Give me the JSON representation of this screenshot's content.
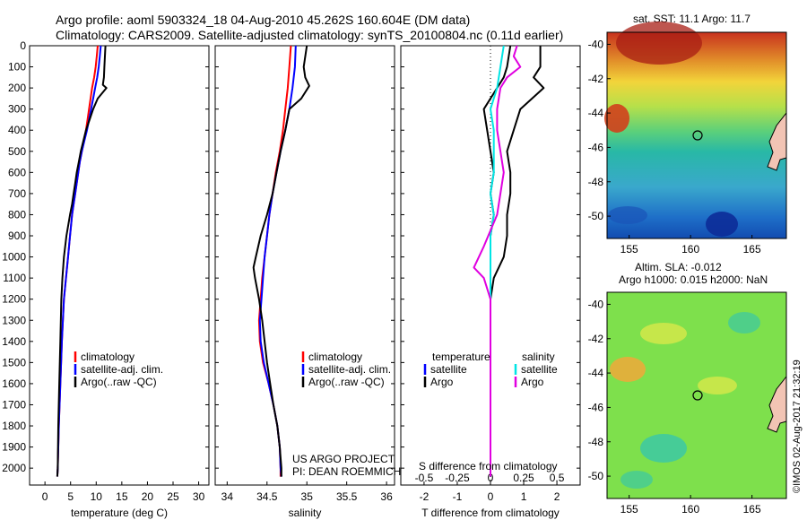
{
  "header": {
    "line1": "Argo profile: aoml 5903324_18 04-Aug-2010 45.262S 160.604E (DM data)",
    "line2": "Climatology: CARS2009. Satellite-adjusted climatology: synTS_20100804.nc (0.11d earlier)"
  },
  "depth_ticks": [
    "0",
    "100",
    "200",
    "300",
    "400",
    "500",
    "600",
    "700",
    "800",
    "900",
    "1000",
    "1100",
    "1200",
    "1300",
    "1400",
    "1500",
    "1600",
    "1700",
    "1800",
    "1900",
    "2000"
  ],
  "colors": {
    "climatology": "#ff0000",
    "satellite": "#0000ff",
    "argo": "#000000",
    "s_satellite": "#00e5e5",
    "s_argo": "#e000e0"
  },
  "legend_profile": {
    "climatology": "climatology",
    "satellite": "satellite-adj. clim.",
    "argo": "Argo(..raw -QC)"
  },
  "legend_diff": {
    "temperature": "temperature",
    "salinity": "salinity",
    "t_satellite": "satellite",
    "t_argo": "Argo",
    "s_satellite": "satellite",
    "s_argo": "Argo"
  },
  "credits": {
    "line1": "US ARGO PROJECT",
    "line2": "PI: DEAN ROEMMICH",
    "imos": "©IMOS 02-Aug-2017 21:32:19"
  },
  "maps": {
    "sst_title": "sat. SST: 11.1 Argo: 11.7",
    "sla_title1": "Altim. SLA: -0.012",
    "sla_title2": "Argo h1000: 0.015 h2000: NaN",
    "lon_ticks": [
      "155",
      "160",
      "165"
    ],
    "lat_ticks": [
      "-40",
      "-42",
      "-44",
      "-46",
      "-48",
      "-50"
    ],
    "profile_marker": {
      "lon": 160.6,
      "lat": -45.26
    }
  },
  "chart_data": [
    {
      "type": "line",
      "name": "temperature-profile",
      "xlabel": "temperature (deg C)",
      "ylabel": "",
      "xlim": [
        -3,
        32
      ],
      "ylim": [
        2080,
        0
      ],
      "xticks": [
        "0",
        "5",
        "10",
        "15",
        "20",
        "25",
        "30"
      ],
      "series": [
        {
          "key": "climatology",
          "name": "climatology",
          "x": [
            10.3,
            10.1,
            9.9,
            9.6,
            9.2,
            8.9,
            8.6,
            8.3,
            8.0,
            7.6,
            7.2,
            6.8,
            6.5,
            6.2,
            5.9,
            5.6,
            5.3,
            4.9,
            4.5,
            4.1,
            3.7,
            3.3,
            3.0,
            2.7,
            2.5,
            2.4
          ],
          "y": [
            0,
            50,
            100,
            150,
            200,
            250,
            300,
            350,
            400,
            450,
            500,
            550,
            600,
            650,
            700,
            750,
            800,
            900,
            1000,
            1100,
            1200,
            1400,
            1600,
            1800,
            2000,
            2040
          ]
        },
        {
          "key": "satellite",
          "name": "satellite-adj. clim.",
          "x": [
            10.9,
            10.7,
            10.5,
            10.2,
            9.8,
            9.4,
            9.0,
            8.6,
            8.2,
            7.7,
            7.2,
            6.8,
            6.5,
            6.2,
            5.9,
            5.6,
            5.3,
            4.9,
            4.5,
            4.1,
            3.7,
            3.3,
            3.0,
            2.7,
            2.5,
            2.4
          ],
          "y": [
            0,
            50,
            100,
            150,
            200,
            250,
            300,
            350,
            400,
            450,
            500,
            550,
            600,
            650,
            700,
            750,
            800,
            900,
            1000,
            1100,
            1200,
            1400,
            1600,
            1800,
            2000,
            2040
          ]
        },
        {
          "key": "argo",
          "name": "Argo(..raw -QC)",
          "x": [
            11.8,
            11.7,
            11.6,
            11.5,
            11.3,
            12.0,
            10.3,
            9.4,
            8.7,
            8.0,
            7.5,
            7.0,
            6.6,
            6.2,
            5.9,
            5.6,
            5.3,
            4.9,
            4.2,
            3.7,
            3.4,
            3.2,
            3.0,
            2.8,
            2.6,
            2.5,
            2.4
          ],
          "y": [
            0,
            50,
            100,
            150,
            185,
            200,
            250,
            300,
            350,
            400,
            450,
            500,
            550,
            600,
            650,
            700,
            750,
            800,
            900,
            1000,
            1100,
            1200,
            1400,
            1600,
            1800,
            2000,
            2040
          ]
        }
      ]
    },
    {
      "type": "line",
      "name": "salinity-profile",
      "xlabel": "salinity",
      "ylabel": "",
      "xlim": [
        33.85,
        36.1
      ],
      "ylim": [
        2080,
        0
      ],
      "xticks": [
        "34",
        "34.5",
        "35",
        "35.5",
        "36"
      ],
      "series": [
        {
          "key": "climatology",
          "name": "climatology",
          "x": [
            34.8,
            34.78,
            34.76,
            34.73,
            34.7,
            34.66,
            34.61,
            34.57,
            34.53,
            34.5,
            34.47,
            34.44,
            34.42,
            34.4,
            34.41,
            34.45,
            34.52,
            34.58,
            34.63,
            34.66,
            34.67,
            34.67
          ],
          "y": [
            0,
            100,
            200,
            300,
            400,
            500,
            600,
            700,
            800,
            900,
            1000,
            1100,
            1200,
            1300,
            1400,
            1500,
            1600,
            1700,
            1800,
            1900,
            2000,
            2040
          ]
        },
        {
          "key": "satellite",
          "name": "satellite-adj. clim.",
          "x": [
            34.86,
            34.85,
            34.82,
            34.78,
            34.73,
            34.67,
            34.62,
            34.57,
            34.53,
            34.5,
            34.47,
            34.45,
            34.43,
            34.41,
            34.42,
            34.46,
            34.52,
            34.58,
            34.63,
            34.66,
            34.67,
            34.68
          ],
          "y": [
            0,
            100,
            200,
            300,
            400,
            500,
            600,
            700,
            800,
            900,
            1000,
            1100,
            1200,
            1300,
            1400,
            1500,
            1600,
            1700,
            1800,
            1900,
            2000,
            2040
          ]
        },
        {
          "key": "argo",
          "name": "Argo(..raw -QC)",
          "x": [
            35.0,
            34.96,
            34.98,
            35.03,
            34.93,
            34.78,
            34.73,
            34.67,
            34.62,
            34.57,
            34.5,
            34.42,
            34.36,
            34.33,
            34.35,
            34.4,
            34.44,
            34.47,
            34.5,
            34.54,
            34.58,
            34.63,
            34.66,
            34.68,
            34.68
          ],
          "y": [
            0,
            100,
            150,
            190,
            250,
            300,
            400,
            500,
            600,
            700,
            800,
            900,
            1000,
            1050,
            1100,
            1200,
            1300,
            1400,
            1500,
            1600,
            1700,
            1800,
            1900,
            2000,
            2040
          ]
        }
      ]
    },
    {
      "type": "line",
      "name": "difference-from-climatology",
      "xlabel": "T difference from climatology",
      "top_label": "S difference from climatology",
      "xlim": [
        -2.7,
        2.7
      ],
      "ylim": [
        2080,
        0
      ],
      "xticks": [
        "-2",
        "-1",
        "0",
        "1",
        "2"
      ],
      "s_ticks": [
        "-0.5",
        "-0.25",
        "0",
        "0.25",
        "0.5"
      ],
      "series": [
        {
          "key": "t_satellite",
          "name": "satellite",
          "x": [
            0.6,
            0.5,
            0.4,
            0.2,
            -0.2,
            -0.1,
            0.0,
            0.1,
            0.0,
            0.1,
            0.0,
            0.0,
            0.0,
            0.0,
            0.0,
            0.0,
            0.0
          ],
          "y": [
            0,
            100,
            150,
            200,
            300,
            400,
            500,
            600,
            700,
            800,
            900,
            1000,
            1200,
            1400,
            1600,
            1800,
            2040
          ]
        },
        {
          "key": "t_argo",
          "name": "Argo",
          "x": [
            1.5,
            1.5,
            1.3,
            1.6,
            0.9,
            0.7,
            0.5,
            0.6,
            0.6,
            0.5,
            0.5,
            0.4,
            0.1,
            0.0,
            0.0,
            0.0,
            0.0
          ],
          "y": [
            0,
            100,
            150,
            200,
            300,
            400,
            500,
            600,
            700,
            800,
            900,
            1000,
            1100,
            1200,
            1500,
            1800,
            2040
          ]
        },
        {
          "key": "s_satellite",
          "name": "satellite",
          "x": [
            0.4,
            0.3,
            0.2,
            0.0,
            0.1,
            0.1,
            0.0,
            0.1,
            0.0,
            0.0,
            0.0,
            0.0,
            0.0,
            0.0,
            0.0
          ],
          "y": [
            0,
            100,
            200,
            300,
            400,
            600,
            700,
            800,
            900,
            1000,
            1200,
            1400,
            1600,
            1800,
            2040
          ]
        },
        {
          "key": "s_argo",
          "name": "Argo",
          "x": [
            0.8,
            0.7,
            0.9,
            0.5,
            0.3,
            0.2,
            0.2,
            0.3,
            0.4,
            0.2,
            -0.2,
            -0.5,
            -0.2,
            0.0,
            0.0,
            0.0,
            0.0,
            0.0
          ],
          "y": [
            0,
            50,
            100,
            150,
            200,
            300,
            400,
            500,
            600,
            800,
            950,
            1050,
            1100,
            1200,
            1400,
            1600,
            1800,
            2040
          ]
        }
      ]
    }
  ]
}
